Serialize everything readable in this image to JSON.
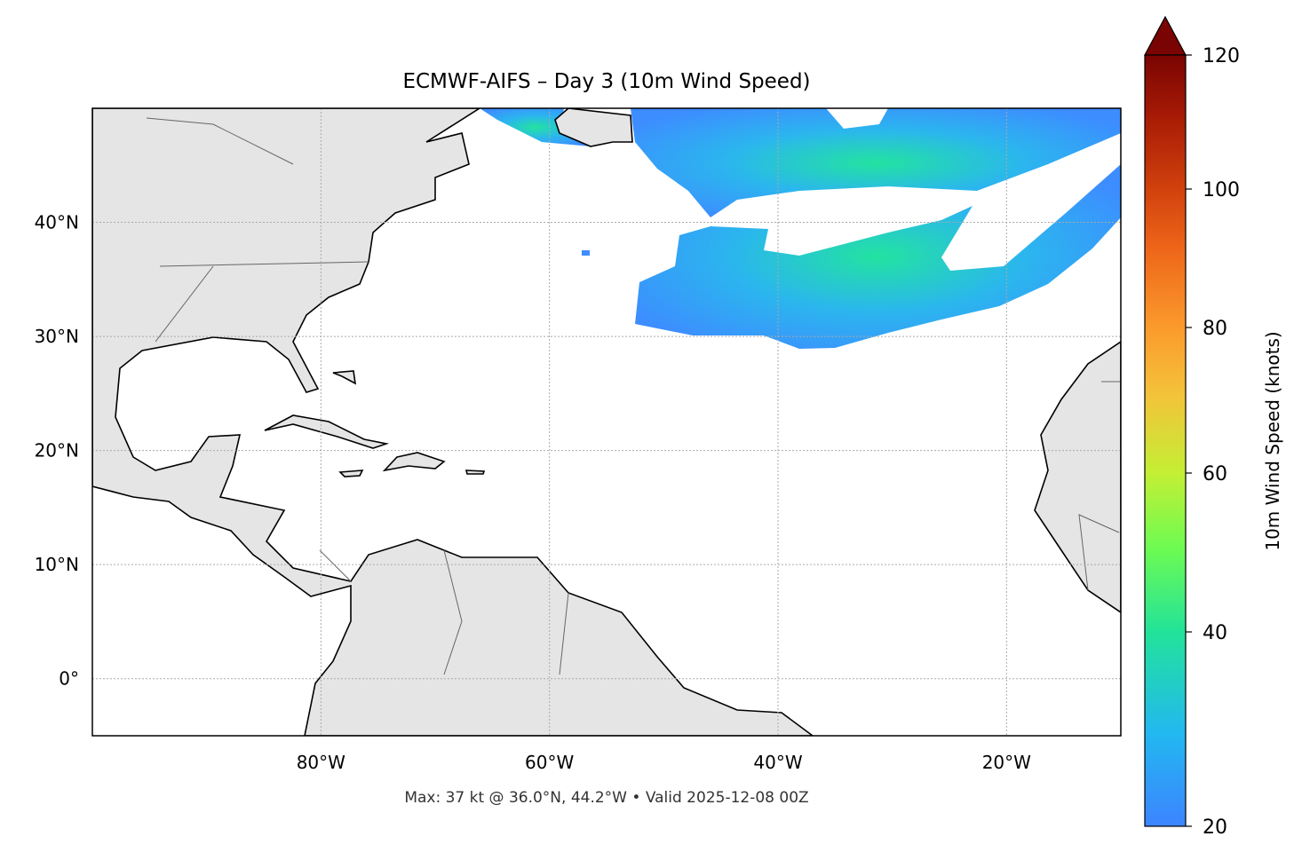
{
  "chart_data": {
    "type": "heatmap",
    "title": "ECMWF-AIFS – Day 3 (10m Wind Speed)",
    "subtitle": "Max: 37 kt @ 36.0°N, 44.2°W • Valid 2025-12-08 00Z",
    "map_extent": {
      "lon": [
        -100,
        -10
      ],
      "lat": [
        -5,
        50
      ]
    },
    "x_ticks": [
      {
        "value": -80,
        "label": "80°W"
      },
      {
        "value": -60,
        "label": "60°W"
      },
      {
        "value": -40,
        "label": "40°W"
      },
      {
        "value": -20,
        "label": "20°W"
      }
    ],
    "y_ticks": [
      {
        "value": 40,
        "label": "40°N"
      },
      {
        "value": 30,
        "label": "30°N"
      },
      {
        "value": 20,
        "label": "20°N"
      },
      {
        "value": 10,
        "label": "10°N"
      },
      {
        "value": 0,
        "label": "0°"
      }
    ],
    "grid": true,
    "colorbar": {
      "label": "10m Wind Speed (knots)",
      "range": [
        20,
        120
      ],
      "extend": "max",
      "ticks": [
        {
          "value": 20,
          "label": "20"
        },
        {
          "value": 40,
          "label": "40"
        },
        {
          "value": 60,
          "label": "60"
        },
        {
          "value": 80,
          "label": "80"
        },
        {
          "value": 100,
          "label": "100"
        },
        {
          "value": 120,
          "label": "120"
        }
      ],
      "colormap": "turbo"
    },
    "max": {
      "value_kt": 37,
      "lat": 36.0,
      "lon": -44.2,
      "valid": "2025-12-08 00Z"
    },
    "colors": {
      "land": "#e5e5e5",
      "low_wind": "#3d8dff",
      "mid_wind": "#22e3a0",
      "ocean": "#ffffff"
    }
  }
}
